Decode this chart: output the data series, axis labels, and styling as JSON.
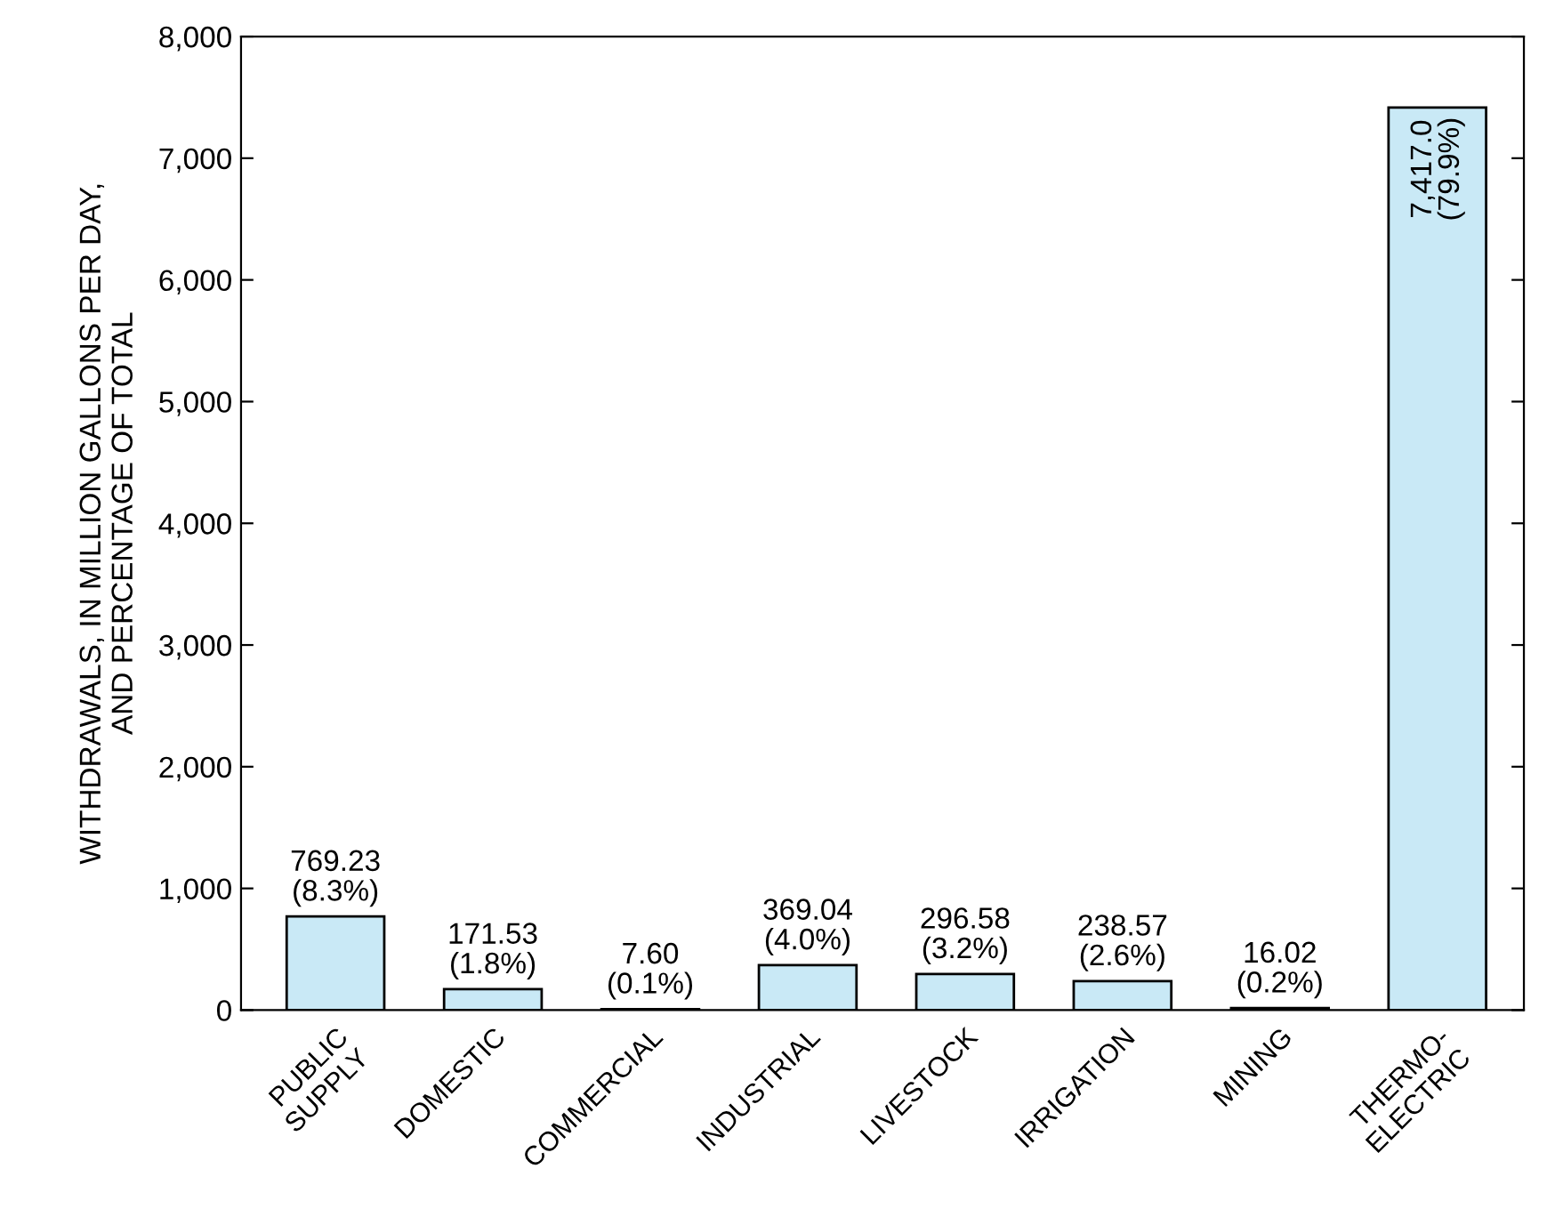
{
  "chart_data": {
    "type": "bar",
    "ylabel": "WITHDRAWALS, IN MILLION GALLONS PER DAY,\nAND PERCENTAGE OF TOTAL",
    "categories": [
      "PUBLIC\nSUPPLY",
      "DOMESTIC",
      "COMMERCIAL",
      "INDUSTRIAL",
      "LIVESTOCK",
      "IRRIGATION",
      "MINING",
      "THERMO-\nELECTRIC"
    ],
    "values": [
      769.23,
      171.53,
      7.6,
      369.04,
      296.58,
      238.57,
      16.02,
      7417.0
    ],
    "value_labels": [
      "769.23\n(8.3%)",
      "171.53\n(1.8%)",
      "7.60\n(0.1%)",
      "369.04\n(4.0%)",
      "296.58\n(3.2%)",
      "238.57\n(2.6%)",
      "16.02\n(0.2%)",
      "7,417.0\n(79.9%)"
    ],
    "color": "#c9e9f6",
    "ylim": [
      0,
      8000
    ],
    "yticks": [
      0,
      {
        "value": 1000,
        "label": "1,000"
      },
      {
        "value": 2000,
        "label": "2,000"
      },
      {
        "value": 3000,
        "label": "3,000"
      },
      {
        "value": 4000,
        "label": "4,000"
      },
      {
        "value": 5000,
        "label": "5,000"
      },
      {
        "value": 6000,
        "label": "6,000"
      },
      {
        "value": 7000,
        "label": "7,000"
      },
      {
        "value": 8000,
        "label": "8,000"
      }
    ],
    "grid": false,
    "legend": false
  }
}
